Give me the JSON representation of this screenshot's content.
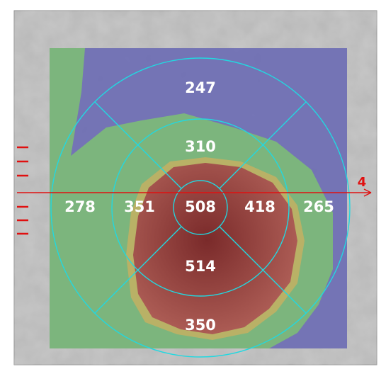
{
  "thickness_map": {
    "outer_superior": 247,
    "inner_superior": 310,
    "outer_temporal_left": 278,
    "inner_left": 351,
    "center": 508,
    "inner_right": 418,
    "outer_right": 265,
    "inner_inferior": 514,
    "outer_inferior": 350,
    "scan_line_label": "4"
  }
}
